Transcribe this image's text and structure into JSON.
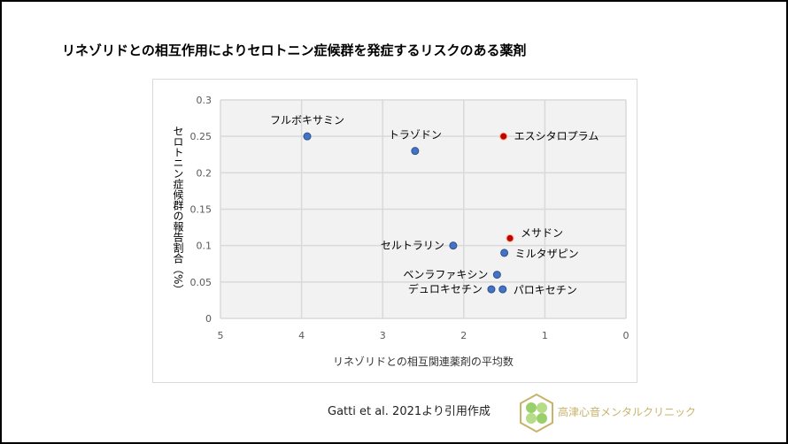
{
  "title": "リネゾリドとの相互作用によりセロトニン症候群を発症するリスクのある薬剤",
  "citation": "Gatti et al. 2021より引用作成",
  "clinic_name": "高津心音メンタルクリニック",
  "chart_data": {
    "type": "scatter",
    "xlabel": "リネゾリドとの相互関連薬剤の平均数",
    "ylabel": "セロトニン症候群の報告割合（%）",
    "xlim": [
      5,
      0
    ],
    "x_reversed": true,
    "ylim": [
      0,
      0.3
    ],
    "xticks": [
      "5",
      "4",
      "3",
      "2",
      "1",
      "0"
    ],
    "yticks": [
      "0",
      "0.05",
      "0.1",
      "0.15",
      "0.2",
      "0.25",
      "0.3"
    ],
    "grid": true,
    "colors": {
      "default": "#4472c4",
      "highlight": "#c00000",
      "plot_bg": "#f2f2f2"
    },
    "points": [
      {
        "label": "フルボキサミン",
        "x": 3.93,
        "y": 0.25,
        "highlight": false,
        "label_pos": "above"
      },
      {
        "label": "トラゾドン",
        "x": 2.6,
        "y": 0.23,
        "highlight": false,
        "label_pos": "above"
      },
      {
        "label": "エスシタロプラム",
        "x": 1.51,
        "y": 0.25,
        "highlight": true,
        "label_pos": "right"
      },
      {
        "label": "メサドン",
        "x": 1.43,
        "y": 0.11,
        "highlight": true,
        "label_pos": "right"
      },
      {
        "label": "セルトラリン",
        "x": 2.13,
        "y": 0.1,
        "highlight": false,
        "label_pos": "left"
      },
      {
        "label": "ミルタザピン",
        "x": 1.5,
        "y": 0.09,
        "highlight": false,
        "label_pos": "right"
      },
      {
        "label": "ベンラファキシン",
        "x": 1.59,
        "y": 0.06,
        "highlight": false,
        "label_pos": "left"
      },
      {
        "label": "デュロキセチン",
        "x": 1.66,
        "y": 0.04,
        "highlight": false,
        "label_pos": "left"
      },
      {
        "label": "パロキセチン",
        "x": 1.52,
        "y": 0.04,
        "highlight": false,
        "label_pos": "right"
      }
    ]
  }
}
